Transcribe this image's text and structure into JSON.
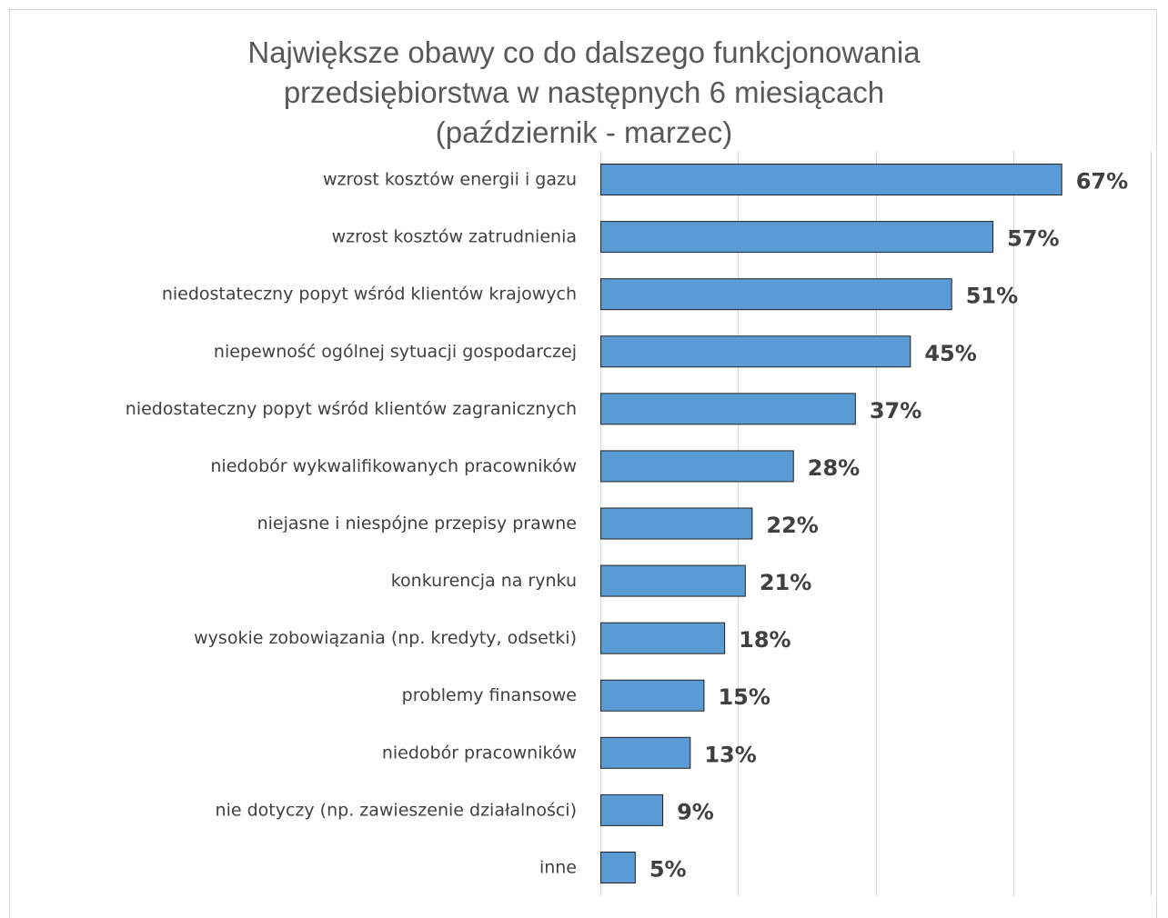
{
  "chart_data": {
    "type": "bar",
    "orientation": "horizontal",
    "title_lines": [
      "Największe obawy co do dalszego funkcjonowania",
      "przedsiębiorstwa w następnych 6 miesiącach",
      "(październik - marzec)"
    ],
    "categories": [
      "wzrost kosztów energii i gazu",
      "wzrost kosztów zatrudnienia",
      "niedostateczny popyt wśród klientów krajowych",
      "niepewność ogólnej sytuacji gospodarczej",
      "niedostateczny popyt wśród klientów zagranicznych",
      "niedobór wykwalifikowanych pracowników",
      "niejasne i niespójne przepisy prawne",
      "konkurencja na rynku",
      "wysokie zobowiązania (np. kredyty, odsetki)",
      "problemy finansowe",
      "niedobór pracowników",
      "nie dotyczy (np. zawieszenie działalności)",
      "inne"
    ],
    "values": [
      67,
      57,
      51,
      45,
      37,
      28,
      22,
      21,
      18,
      15,
      13,
      9,
      5
    ],
    "value_labels": [
      "67%",
      "57%",
      "51%",
      "45%",
      "37%",
      "28%",
      "22%",
      "21%",
      "18%",
      "15%",
      "13%",
      "9%",
      "5%"
    ],
    "xlim": [
      0,
      80
    ],
    "x_gridlines": [
      0,
      20,
      40,
      60,
      80
    ],
    "grid": true,
    "legend": "none",
    "colors": {
      "bar": "#5b9bd5",
      "bar_border": "#1f1f1f",
      "text": "#404040",
      "title": "#595959",
      "grid": "#d9d9d9"
    }
  }
}
